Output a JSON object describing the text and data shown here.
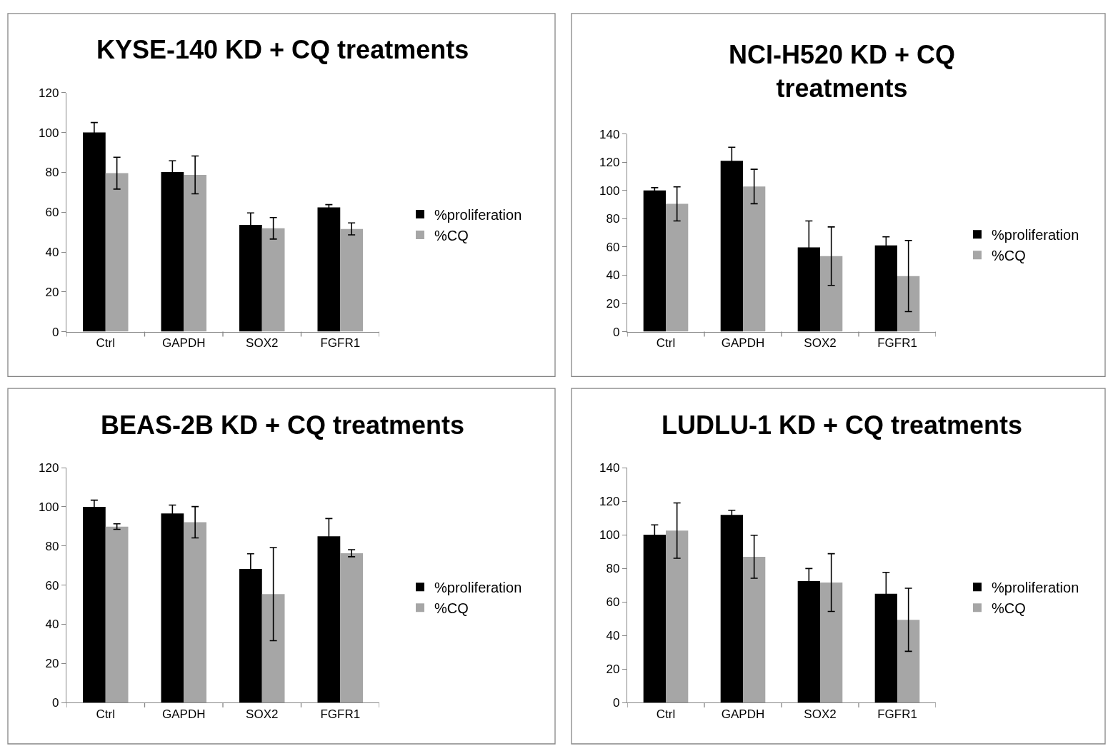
{
  "chart_data": [
    {
      "type": "bar",
      "title": "KYSE-140 KD + CQ treatments",
      "categories": [
        "Ctrl",
        "GAPDH",
        "SOX2",
        "FGFR1"
      ],
      "ylim": [
        0,
        120
      ],
      "yticks": [
        0,
        20,
        40,
        60,
        80,
        100,
        120
      ],
      "grid": false,
      "legend": "right",
      "series": [
        {
          "name": "%proliferation",
          "color": "#000000",
          "values": [
            100,
            80.1,
            53.6,
            62.4
          ],
          "errors": [
            5,
            5.7,
            6,
            1.4
          ]
        },
        {
          "name": "%CQ",
          "color": "#a6a6a6",
          "values": [
            79.6,
            78.7,
            51.9,
            51.6
          ],
          "errors": [
            8,
            9.5,
            5.4,
            3
          ]
        }
      ]
    },
    {
      "type": "bar",
      "title": "NCI-H520 KD + CQ treatments",
      "categories": [
        "Ctrl",
        "GAPDH",
        "SOX2",
        "FGFR1"
      ],
      "ylim": [
        0,
        140
      ],
      "yticks": [
        0,
        20,
        40,
        60,
        80,
        100,
        120,
        140
      ],
      "grid": false,
      "legend": "right",
      "series": [
        {
          "name": "%proliferation",
          "color": "#000000",
          "values": [
            100,
            121,
            59.7,
            61.1
          ],
          "errors": [
            2,
            9.6,
            18.7,
            6.1
          ]
        },
        {
          "name": "%CQ",
          "color": "#a6a6a6",
          "values": [
            90.5,
            102.8,
            53.5,
            39.4
          ],
          "errors": [
            12.1,
            12.2,
            20.7,
            25.2
          ]
        }
      ]
    },
    {
      "type": "bar",
      "title": "BEAS-2B KD + CQ treatments",
      "categories": [
        "Ctrl",
        "GAPDH",
        "SOX2",
        "FGFR1"
      ],
      "ylim": [
        0,
        120
      ],
      "yticks": [
        0,
        20,
        40,
        60,
        80,
        100,
        120
      ],
      "grid": false,
      "legend": "right",
      "series": [
        {
          "name": "%proliferation",
          "color": "#000000",
          "values": [
            100,
            96.6,
            68.2,
            84.9
          ],
          "errors": [
            3.4,
            4.3,
            7.8,
            9.1
          ]
        },
        {
          "name": "%CQ",
          "color": "#a6a6a6",
          "values": [
            89.9,
            92.1,
            55.4,
            76.3
          ],
          "errors": [
            1.4,
            8,
            23.8,
            1.8
          ]
        }
      ]
    },
    {
      "type": "bar",
      "title": "LUDLU-1 KD + CQ treatments",
      "categories": [
        "Ctrl",
        "GAPDH",
        "SOX2",
        "FGFR1"
      ],
      "ylim": [
        0,
        140
      ],
      "yticks": [
        0,
        20,
        40,
        60,
        80,
        100,
        120,
        140
      ],
      "grid": false,
      "legend": "right",
      "series": [
        {
          "name": "%proliferation",
          "color": "#000000",
          "values": [
            100,
            111.9,
            72.4,
            64.8
          ],
          "errors": [
            5.9,
            2.7,
            7.5,
            12.8
          ]
        },
        {
          "name": "%CQ",
          "color": "#a6a6a6",
          "values": [
            102.5,
            86.9,
            71.5,
            49.3
          ],
          "errors": [
            16.5,
            12.8,
            17.2,
            18.8
          ]
        }
      ]
    }
  ]
}
